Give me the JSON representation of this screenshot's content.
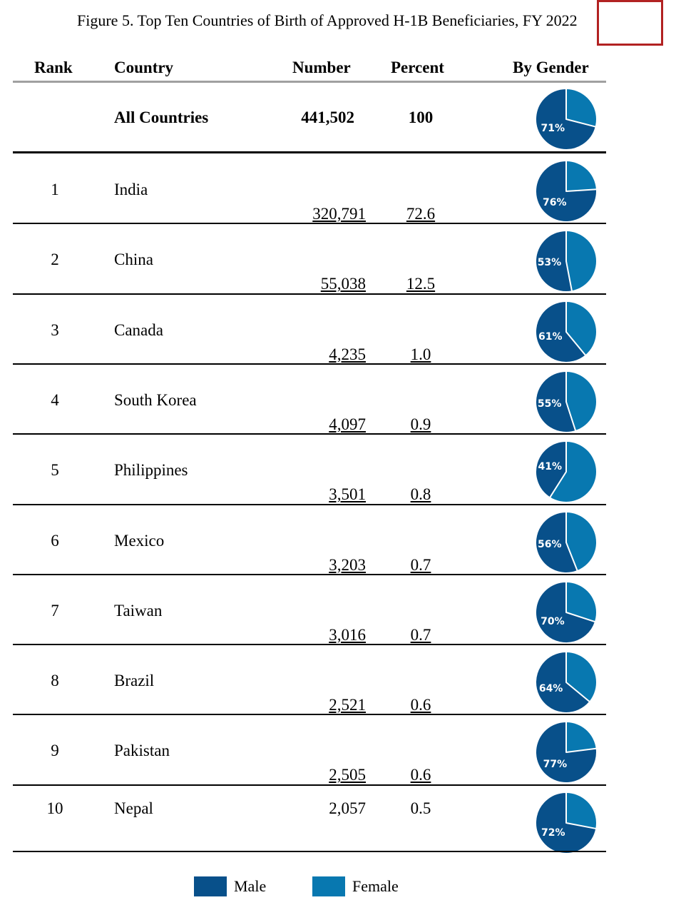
{
  "title": "Figure 5. Top Ten Countries of Birth of Approved H-1B Beneficiaries, FY 2022",
  "headers": {
    "rank": "Rank",
    "country": "Country",
    "number": "Number",
    "percent": "Percent",
    "by_gender": "By Gender"
  },
  "colors": {
    "male": "#08508a",
    "female": "#0878b0",
    "highlight": "#b22222"
  },
  "legend": {
    "male": "Male",
    "female": "Female"
  },
  "chart_data": {
    "type": "table",
    "title": "Figure 5. Top Ten Countries of Birth of Approved H-1B Beneficiaries, FY 2022",
    "columns": [
      "Rank",
      "Country",
      "Number",
      "Percent",
      "By Gender"
    ],
    "total": {
      "country": "All Countries",
      "number": "441,502",
      "percent": "100",
      "male_pct": 71,
      "male_label": "71%"
    },
    "rows": [
      {
        "rank": "1",
        "country": "India",
        "number": "320,791",
        "percent": "72.6",
        "male_pct": 76,
        "male_label": "76%"
      },
      {
        "rank": "2",
        "country": "China",
        "number": "55,038",
        "percent": "12.5",
        "male_pct": 53,
        "male_label": "53%"
      },
      {
        "rank": "3",
        "country": "Canada",
        "number": "4,235",
        "percent": "1.0",
        "male_pct": 61,
        "male_label": "61%"
      },
      {
        "rank": "4",
        "country": "South Korea",
        "number": "4,097",
        "percent": "0.9",
        "male_pct": 55,
        "male_label": "55%"
      },
      {
        "rank": "5",
        "country": "Philippines",
        "number": "3,501",
        "percent": "0.8",
        "male_pct": 41,
        "male_label": "41%"
      },
      {
        "rank": "6",
        "country": "Mexico",
        "number": "3,203",
        "percent": "0.7",
        "male_pct": 56,
        "male_label": "56%"
      },
      {
        "rank": "7",
        "country": "Taiwan",
        "number": "3,016",
        "percent": "0.7",
        "male_pct": 70,
        "male_label": "70%"
      },
      {
        "rank": "8",
        "country": "Brazil",
        "number": "2,521",
        "percent": "0.6",
        "male_pct": 64,
        "male_label": "64%"
      },
      {
        "rank": "9",
        "country": "Pakistan",
        "number": "2,505",
        "percent": "0.6",
        "male_pct": 77,
        "male_label": "77%"
      },
      {
        "rank": "10",
        "country": "Nepal",
        "number": "2,057",
        "percent": "0.5",
        "male_pct": 72,
        "male_label": "72%"
      }
    ],
    "series": [
      {
        "name": "Male"
      },
      {
        "name": "Female"
      }
    ]
  }
}
